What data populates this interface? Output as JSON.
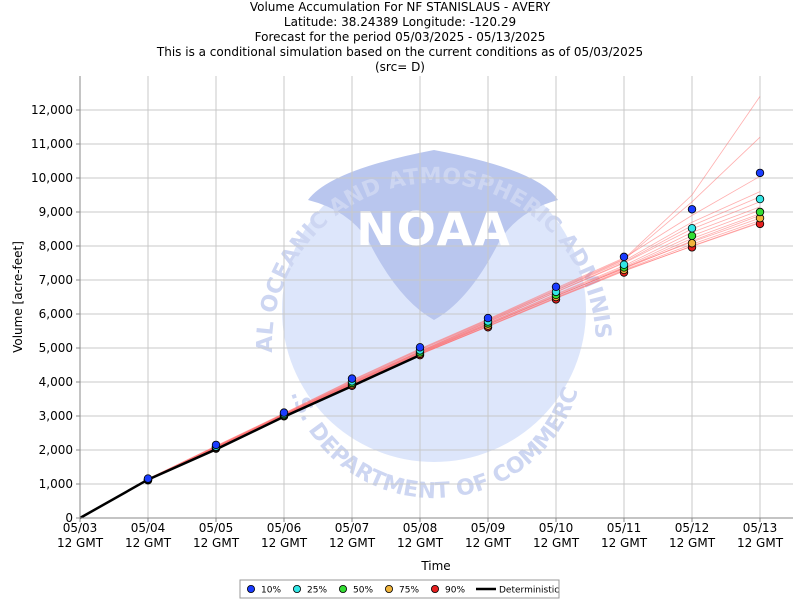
{
  "chart_data": {
    "type": "line",
    "title": "Volume Accumulation For NF STANISLAUS - AVERY",
    "subtitle_lines": [
      "Latitude: 38.24389 Longitude: -120.29",
      "Forecast for the period 05/03/2025 - 05/13/2025",
      "This is a conditional simulation based on the current conditions as of 05/03/2025",
      "(src= D)"
    ],
    "xlabel": "Time",
    "ylabel": "Volume [acre-feet]",
    "ylim": [
      0,
      13000
    ],
    "yticks": [
      0,
      1000,
      2000,
      3000,
      4000,
      5000,
      6000,
      7000,
      8000,
      9000,
      10000,
      11000,
      12000
    ],
    "ytick_labels": [
      "0",
      "1,000",
      "2,000",
      "3,000",
      "4,000",
      "5,000",
      "6,000",
      "7,000",
      "8,000",
      "9,000",
      "10,000",
      "11,000",
      "12,000"
    ],
    "x_ticks": [
      {
        "date": "05/03",
        "time": "12 GMT"
      },
      {
        "date": "05/04",
        "time": "12 GMT"
      },
      {
        "date": "05/05",
        "time": "12 GMT"
      },
      {
        "date": "05/06",
        "time": "12 GMT"
      },
      {
        "date": "05/07",
        "time": "12 GMT"
      },
      {
        "date": "05/08",
        "time": "12 GMT"
      },
      {
        "date": "05/09",
        "time": "12 GMT"
      },
      {
        "date": "05/10",
        "time": "12 GMT"
      },
      {
        "date": "05/11",
        "time": "12 GMT"
      },
      {
        "date": "05/12",
        "time": "12 GMT"
      },
      {
        "date": "05/13",
        "time": "12 GMT"
      }
    ],
    "grid": true,
    "legend_position": "bottom-center",
    "deterministic": {
      "name": "Deterministic",
      "color": "#000000",
      "values": [
        0,
        1130,
        2020,
        2980,
        3880,
        4790
      ]
    },
    "percentile_series": [
      {
        "name": "10%",
        "color": "#1a3cff",
        "values": [
          null,
          1160,
          2150,
          3100,
          4100,
          5020,
          5880,
          6800,
          7680,
          9080,
          10150
        ]
      },
      {
        "name": "25%",
        "color": "#33e6e6",
        "values": [
          null,
          1140,
          2100,
          3060,
          4020,
          4930,
          5780,
          6650,
          7450,
          8520,
          9380
        ]
      },
      {
        "name": "50%",
        "color": "#33dd33",
        "values": [
          null,
          1130,
          2080,
          3030,
          3970,
          4870,
          5720,
          6560,
          7370,
          8300,
          9000
        ]
      },
      {
        "name": "75%",
        "color": "#f0b43c",
        "values": [
          null,
          1120,
          2060,
          3010,
          3930,
          4830,
          5660,
          6500,
          7300,
          8080,
          8820
        ]
      },
      {
        "name": "90%",
        "color": "#e62020",
        "values": [
          null,
          1110,
          2040,
          2990,
          3890,
          4790,
          5610,
          6430,
          7220,
          7960,
          8650
        ]
      }
    ],
    "traces": {
      "color": "#ff6b6b",
      "members": [
        [
          0,
          1130,
          2050,
          3010,
          3930,
          4830,
          5680,
          6520,
          7360,
          8120,
          8820
        ],
        [
          0,
          1140,
          2080,
          3040,
          3980,
          4890,
          5760,
          6640,
          7500,
          8500,
          9300
        ],
        [
          0,
          1120,
          2040,
          2990,
          3910,
          4810,
          5640,
          6470,
          7280,
          7990,
          8680
        ],
        [
          0,
          1150,
          2120,
          3080,
          4060,
          4980,
          5850,
          6760,
          7650,
          8900,
          10050
        ],
        [
          0,
          1130,
          2070,
          3030,
          3960,
          4870,
          5720,
          6570,
          7380,
          8300,
          9050
        ],
        [
          0,
          1135,
          2060,
          3020,
          3950,
          4850,
          5700,
          6540,
          7330,
          8150,
          8900
        ],
        [
          0,
          1145,
          2090,
          3050,
          4000,
          4910,
          5790,
          6690,
          7560,
          8700,
          9600
        ],
        [
          0,
          1125,
          2050,
          3000,
          3920,
          4820,
          5650,
          6490,
          7300,
          8050,
          8750
        ],
        [
          0,
          1140,
          2100,
          3060,
          4020,
          4940,
          5810,
          6700,
          7600,
          9300,
          11200
        ],
        [
          0,
          1150,
          2110,
          3070,
          4040,
          4960,
          5830,
          6730,
          7620,
          9500,
          12400
        ],
        [
          0,
          1130,
          2060,
          3020,
          3940,
          4850,
          5690,
          6530,
          7350,
          8220,
          8950
        ],
        [
          0,
          1120,
          2045,
          2995,
          3915,
          4815,
          5630,
          6460,
          7260,
          8000,
          8700
        ],
        [
          0,
          1135,
          2070,
          3035,
          3965,
          4875,
          5730,
          6590,
          7420,
          8400,
          9150
        ],
        [
          0,
          1140,
          2085,
          3045,
          3990,
          4900,
          5770,
          6650,
          7520,
          8600,
          9450
        ]
      ]
    },
    "watermark": {
      "center_text": "NOAA",
      "ring_top": "NATIONAL OCEANIC AND ATMOSPHERIC ADMINISTRATION",
      "ring_bottom": "U.S. DEPARTMENT OF COMMERCE"
    }
  }
}
